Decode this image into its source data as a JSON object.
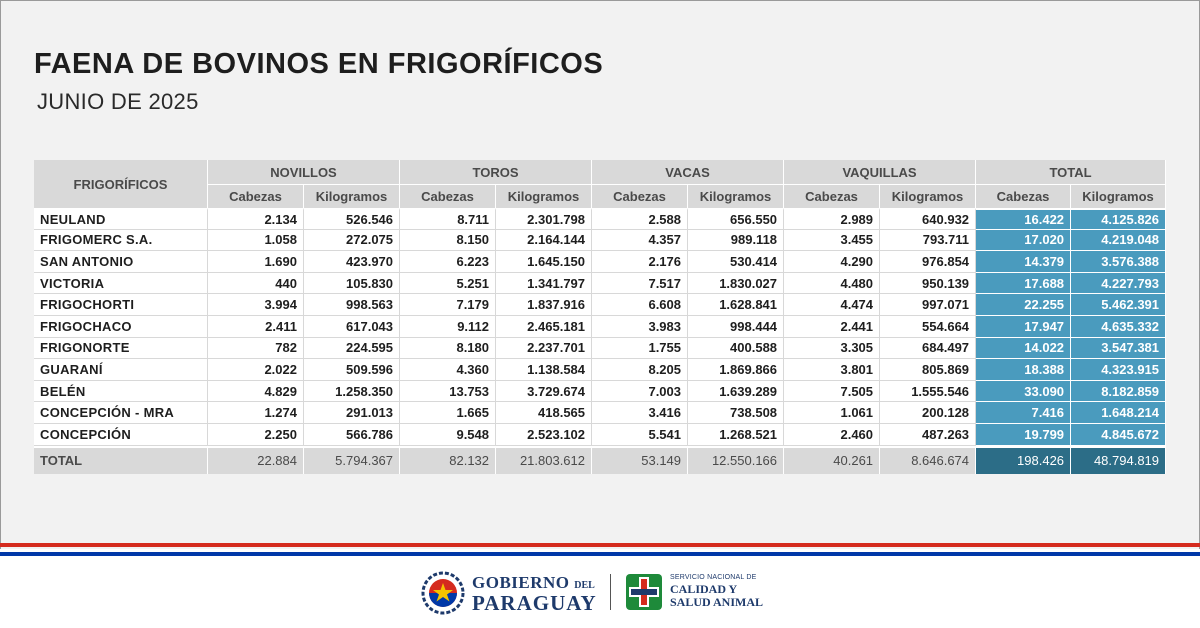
{
  "title": "FAENA DE BOVINOS EN FRIGORÍFICOS",
  "subtitle": "JUNIO DE 2025",
  "table": {
    "row_header": "FRIGORÍFICOS",
    "groups": [
      "NOVILLOS",
      "TOROS",
      "VACAS",
      "VAQUILLAS",
      "TOTAL"
    ],
    "sub": {
      "cab": "Cabezas",
      "kg": "Kilogramos"
    },
    "rows": [
      {
        "name": "NEULAND",
        "v": [
          "2.134",
          "526.546",
          "8.711",
          "2.301.798",
          "2.588",
          "656.550",
          "2.989",
          "640.932",
          "16.422",
          "4.125.826"
        ]
      },
      {
        "name": "FRIGOMERC S.A.",
        "v": [
          "1.058",
          "272.075",
          "8.150",
          "2.164.144",
          "4.357",
          "989.118",
          "3.455",
          "793.711",
          "17.020",
          "4.219.048"
        ]
      },
      {
        "name": "SAN ANTONIO",
        "v": [
          "1.690",
          "423.970",
          "6.223",
          "1.645.150",
          "2.176",
          "530.414",
          "4.290",
          "976.854",
          "14.379",
          "3.576.388"
        ]
      },
      {
        "name": "VICTORIA",
        "v": [
          "440",
          "105.830",
          "5.251",
          "1.341.797",
          "7.517",
          "1.830.027",
          "4.480",
          "950.139",
          "17.688",
          "4.227.793"
        ]
      },
      {
        "name": "FRIGOCHORTI",
        "v": [
          "3.994",
          "998.563",
          "7.179",
          "1.837.916",
          "6.608",
          "1.628.841",
          "4.474",
          "997.071",
          "22.255",
          "5.462.391"
        ]
      },
      {
        "name": "FRIGOCHACO",
        "v": [
          "2.411",
          "617.043",
          "9.112",
          "2.465.181",
          "3.983",
          "998.444",
          "2.441",
          "554.664",
          "17.947",
          "4.635.332"
        ]
      },
      {
        "name": "FRIGONORTE",
        "v": [
          "782",
          "224.595",
          "8.180",
          "2.237.701",
          "1.755",
          "400.588",
          "3.305",
          "684.497",
          "14.022",
          "3.547.381"
        ]
      },
      {
        "name": "GUARANÍ",
        "v": [
          "2.022",
          "509.596",
          "4.360",
          "1.138.584",
          "8.205",
          "1.869.866",
          "3.801",
          "805.869",
          "18.388",
          "4.323.915"
        ]
      },
      {
        "name": "BELÉN",
        "v": [
          "4.829",
          "1.258.350",
          "13.753",
          "3.729.674",
          "7.003",
          "1.639.289",
          "7.505",
          "1.555.546",
          "33.090",
          "8.182.859"
        ]
      },
      {
        "name": "CONCEPCIÓN - MRA",
        "v": [
          "1.274",
          "291.013",
          "1.665",
          "418.565",
          "3.416",
          "738.508",
          "1.061",
          "200.128",
          "7.416",
          "1.648.214"
        ]
      },
      {
        "name": "CONCEPCIÓN",
        "v": [
          "2.250",
          "566.786",
          "9.548",
          "2.523.102",
          "5.541",
          "1.268.521",
          "2.460",
          "487.263",
          "19.799",
          "4.845.672"
        ]
      }
    ],
    "total": {
      "name": "TOTAL",
      "v": [
        "22.884",
        "5.794.367",
        "82.132",
        "21.803.612",
        "53.149",
        "12.550.166",
        "40.261",
        "8.646.674",
        "198.426",
        "48.794.819"
      ]
    }
  },
  "footer": {
    "gob_line1": "GOBIERNO",
    "gob_del": "DEL",
    "gob_line2": "PARAGUAY",
    "senacsa_line1": "SERVICIO NACIONAL DE",
    "senacsa_line2": "CALIDAD Y",
    "senacsa_line3": "SALUD ANIMAL"
  },
  "colors": {
    "total_col": "#4a9bbe",
    "grand_total": "#2c6d87",
    "flag_red": "#d52b1e",
    "flag_blue": "#0038a8"
  }
}
